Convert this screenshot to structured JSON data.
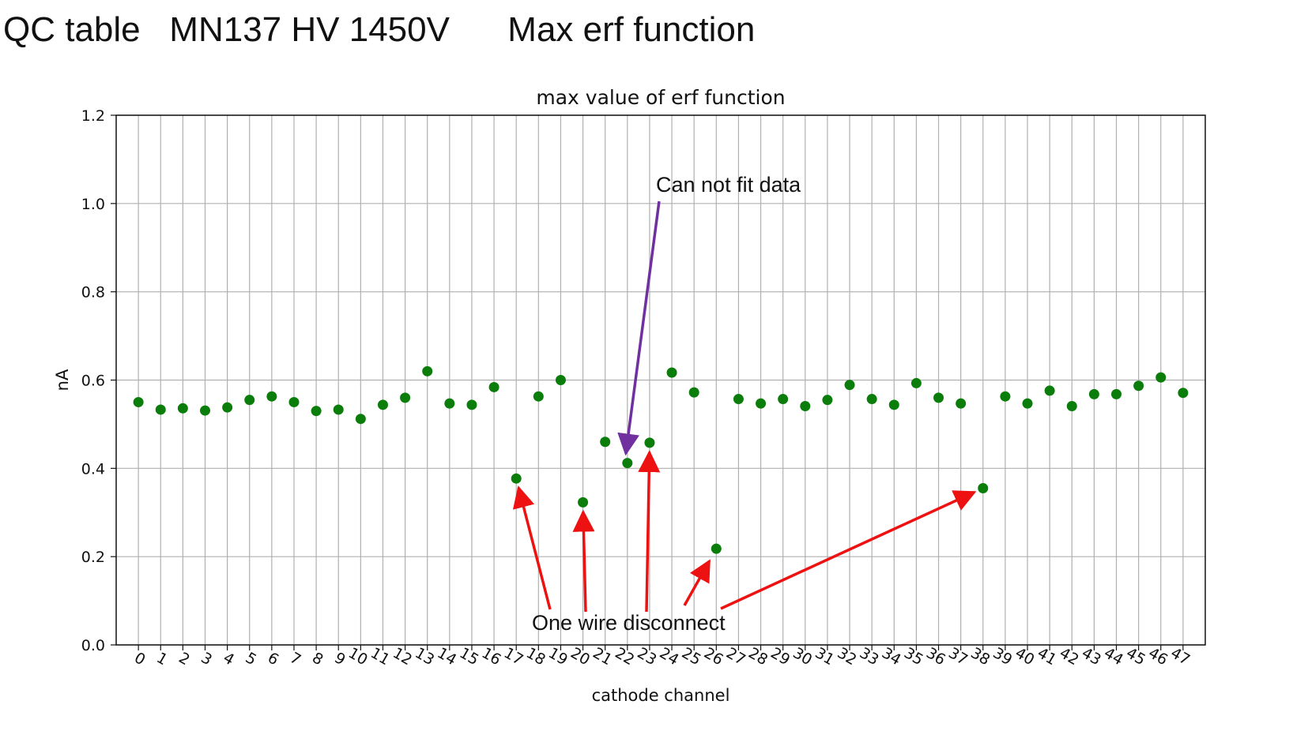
{
  "slide": {
    "title": "QC table   MN137 HV 1450V      Max erf function"
  },
  "colors": {
    "points": "#0a7d0a",
    "grid": "#b0b0b0",
    "annot_purple": "#7030a0",
    "annot_red": "#ee1111"
  },
  "chart_data": {
    "type": "scatter",
    "title": "max value of erf function",
    "xlabel": "cathode channel",
    "ylabel": "nA",
    "ylim": [
      0.0,
      1.2
    ],
    "xlim": [
      -1,
      48
    ],
    "yticks": [
      0.0,
      0.2,
      0.4,
      0.6,
      0.8,
      1.0,
      1.2
    ],
    "ytick_labels": [
      "0.0",
      "0.2",
      "0.4",
      "0.6",
      "0.8",
      "1.0",
      "1.2"
    ],
    "grid": true,
    "x": [
      0,
      1,
      2,
      3,
      4,
      5,
      6,
      7,
      8,
      9,
      10,
      11,
      12,
      13,
      14,
      15,
      16,
      17,
      18,
      19,
      20,
      21,
      22,
      23,
      24,
      25,
      26,
      27,
      28,
      29,
      30,
      31,
      32,
      33,
      34,
      35,
      36,
      37,
      38,
      39,
      40,
      41,
      42,
      43,
      44,
      45,
      46,
      47
    ],
    "y": [
      0.55,
      0.533,
      0.536,
      0.531,
      0.538,
      0.555,
      0.563,
      0.55,
      0.53,
      0.533,
      0.512,
      0.544,
      0.56,
      0.62,
      0.547,
      0.544,
      0.584,
      0.377,
      0.563,
      0.6,
      0.323,
      0.46,
      0.412,
      0.458,
      0.617,
      0.572,
      0.218,
      0.557,
      0.547,
      0.557,
      0.541,
      0.555,
      0.589,
      0.557,
      0.544,
      0.593,
      0.56,
      0.547,
      0.355,
      0.563,
      0.547,
      0.576,
      0.541,
      0.568,
      0.568,
      0.587,
      0.606,
      0.571
    ],
    "annotations": [
      {
        "text": "Can not fit data",
        "color": "purple",
        "targets": [
          22
        ]
      },
      {
        "text": "One wire disconnect",
        "color": "red",
        "targets": [
          17,
          20,
          23,
          26,
          38
        ]
      }
    ]
  }
}
